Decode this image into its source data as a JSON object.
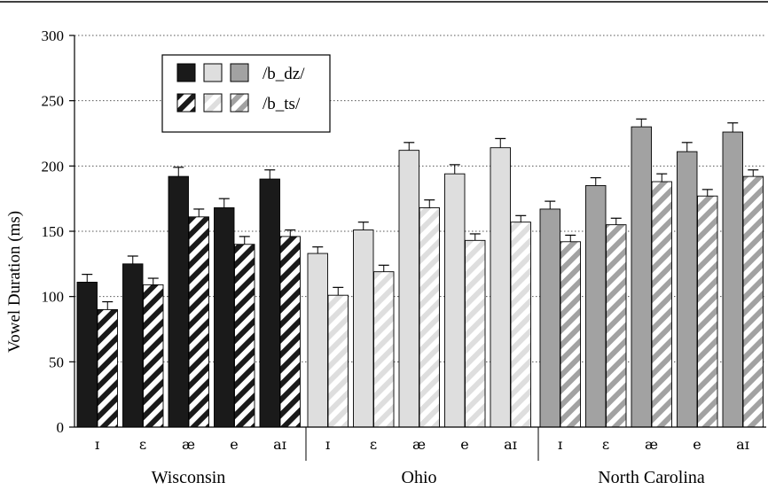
{
  "chart_data": {
    "type": "bar",
    "ylabel": "Vowel Duration (ms)",
    "ylim": [
      0,
      300
    ],
    "yticks": [
      0,
      50,
      100,
      150,
      200,
      250,
      300
    ],
    "grid": "horizontal dotted",
    "legend_position": "top-left",
    "legend": [
      "/b_dz/",
      "/b_ts/"
    ],
    "vowels": [
      "ɪ",
      "ɛ",
      "æ",
      "e",
      "aɪ"
    ],
    "colors": {
      "Wisconsin": "#1a1a1a",
      "Ohio": "#dedede",
      "North Carolina": "#a2a2a2"
    },
    "groups": [
      {
        "name": "Wisconsin",
        "dz": [
          111,
          125,
          192,
          168,
          190
        ],
        "dz_err": [
          6,
          6,
          7,
          7,
          7
        ],
        "ts": [
          90,
          109,
          161,
          140,
          146
        ],
        "ts_err": [
          6,
          5,
          6,
          6,
          5
        ]
      },
      {
        "name": "Ohio",
        "dz": [
          133,
          151,
          212,
          194,
          214
        ],
        "dz_err": [
          5,
          6,
          6,
          7,
          7
        ],
        "ts": [
          101,
          119,
          168,
          143,
          157
        ],
        "ts_err": [
          6,
          5,
          6,
          5,
          5
        ]
      },
      {
        "name": "North Carolina",
        "dz": [
          167,
          185,
          230,
          211,
          226
        ],
        "dz_err": [
          6,
          6,
          6,
          7,
          7
        ],
        "ts": [
          142,
          155,
          188,
          177,
          192
        ],
        "ts_err": [
          5,
          5,
          6,
          5,
          5
        ]
      }
    ]
  }
}
